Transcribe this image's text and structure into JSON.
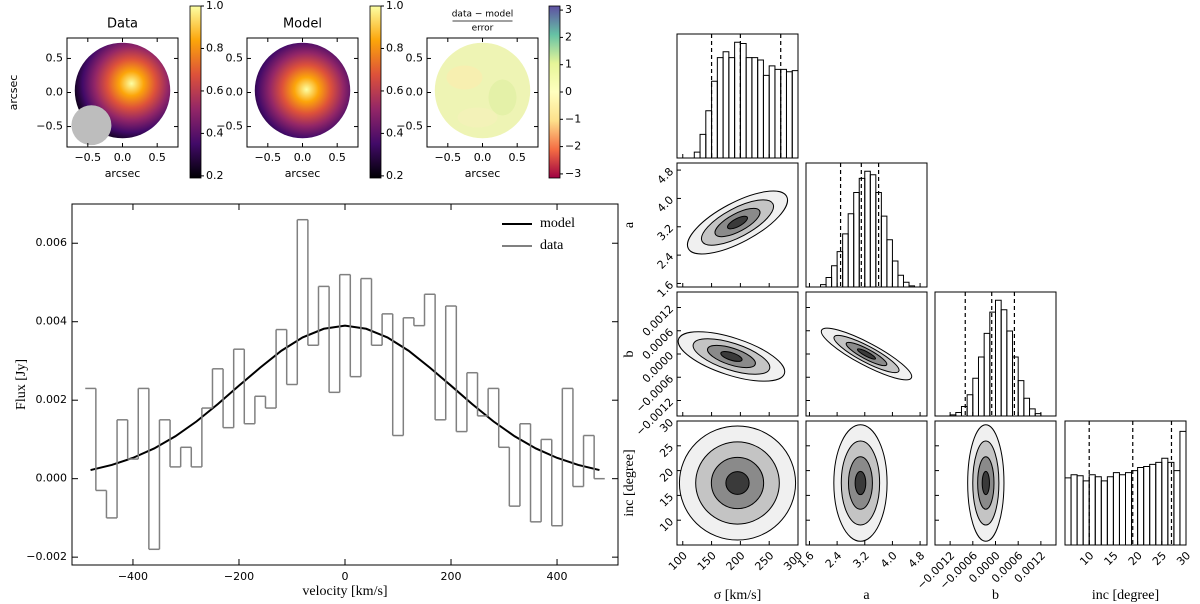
{
  "chart_data": [
    {
      "type": "image",
      "title": "Data",
      "xlabel": "arcsec",
      "ylabel": "arcsec",
      "colormap": "inferno",
      "xlim": [
        -0.8,
        0.8
      ],
      "ylim": [
        -0.8,
        0.8
      ],
      "xticks": [
        {
          "value": -0.5,
          "label": "−0.5"
        },
        {
          "value": 0,
          "label": "0.0"
        },
        {
          "value": 0.5,
          "label": "0.5"
        }
      ],
      "yticks": [
        {
          "value": -0.5,
          "label": "−0.5"
        },
        {
          "value": 0,
          "label": "0.0"
        },
        {
          "value": 0.5,
          "label": "0.5"
        }
      ],
      "clim": [
        0.19,
        1.0
      ],
      "cticks": [
        0.2,
        0.4,
        0.6,
        0.8,
        {
          "value": 1,
          "label": "1.0"
        }
      ]
    },
    {
      "type": "image",
      "title": "Model",
      "xlabel": "arcsec",
      "colormap": "inferno",
      "xlim": [
        -0.8,
        0.8
      ],
      "ylim": [
        -0.8,
        0.8
      ],
      "xticks": [
        {
          "value": -0.5,
          "label": "−0.5"
        },
        {
          "value": 0,
          "label": "0.0"
        },
        {
          "value": 0.5,
          "label": "0.5"
        }
      ],
      "yticks": [
        {
          "value": -0.5,
          "label": "−0.5"
        },
        {
          "value": 0,
          "label": "0.0"
        },
        {
          "value": 0.5,
          "label": "0.5"
        }
      ],
      "clim": [
        0.19,
        1.0
      ],
      "cticks": [
        0.2,
        0.4,
        0.6,
        0.8,
        {
          "value": 1,
          "label": "1.0"
        }
      ]
    },
    {
      "type": "image",
      "title": {
        "numerator": "data − model",
        "denominator": "error"
      },
      "xlabel": "arcsec",
      "colormap": "spectral",
      "xlim": [
        -0.8,
        0.8
      ],
      "ylim": [
        -0.8,
        0.8
      ],
      "xticks": [
        {
          "value": -0.5,
          "label": "−0.5"
        },
        {
          "value": 0,
          "label": "0.0"
        },
        {
          "value": 0.5,
          "label": "0.5"
        }
      ],
      "yticks": [
        {
          "value": -0.5,
          "label": "−0.5"
        },
        {
          "value": 0,
          "label": "0.0"
        },
        {
          "value": 0.5,
          "label": "0.5"
        }
      ],
      "clim": [
        -3.15,
        3.15
      ],
      "cticks": [
        {
          "value": -3,
          "label": "−3"
        },
        {
          "value": -2,
          "label": "−2"
        },
        {
          "value": -1,
          "label": "−1"
        },
        0,
        1,
        2,
        3
      ]
    },
    {
      "type": "line",
      "xlabel": "velocity [km/s]",
      "ylabel": "Flux [Jy]",
      "legend": "upper right",
      "xlim": [
        -515,
        515
      ],
      "ylim": [
        -0.0022,
        0.007
      ],
      "xticks": [
        {
          "value": -400,
          "label": "−400"
        },
        {
          "value": -200,
          "label": "−200"
        },
        0,
        200,
        400
      ],
      "yticks": [
        {
          "value": -0.002,
          "label": "−0.002"
        },
        {
          "value": 0,
          "label": "0.000"
        },
        0.002,
        0.004,
        0.006
      ],
      "series": [
        {
          "name": "model",
          "color": "#000000",
          "style": "line",
          "x": [
            -480,
            -440,
            -400,
            -360,
            -320,
            -280,
            -240,
            -200,
            -160,
            -120,
            -80,
            -40,
            0,
            40,
            80,
            120,
            160,
            200,
            240,
            280,
            320,
            360,
            400,
            440,
            480
          ],
          "values": [
            0.00022,
            0.00035,
            0.00053,
            0.00077,
            0.00108,
            0.00146,
            0.0019,
            0.00237,
            0.00283,
            0.00326,
            0.0036,
            0.00382,
            0.0039,
            0.00382,
            0.0036,
            0.00326,
            0.00283,
            0.00237,
            0.0019,
            0.00146,
            0.00108,
            0.00077,
            0.00053,
            0.00035,
            0.00022
          ]
        },
        {
          "name": "data",
          "color": "#808080",
          "style": "step",
          "x": [
            -480,
            -460,
            -440,
            -420,
            -400,
            -380,
            -360,
            -340,
            -320,
            -300,
            -280,
            -260,
            -240,
            -220,
            -200,
            -180,
            -160,
            -140,
            -120,
            -100,
            -80,
            -60,
            -40,
            -20,
            0,
            20,
            40,
            60,
            80,
            100,
            120,
            140,
            160,
            180,
            200,
            220,
            240,
            260,
            280,
            300,
            320,
            340,
            360,
            380,
            400,
            420,
            440,
            460,
            480
          ],
          "values": [
            0.0023,
            -0.0003,
            -0.001,
            0.0015,
            0.0005,
            0.0023,
            -0.0018,
            0.0015,
            0.0003,
            0.0008,
            0.0003,
            0.0018,
            0.0028,
            0.0013,
            0.0033,
            0.0014,
            0.0021,
            0.0018,
            0.0038,
            0.0024,
            0.0066,
            0.0034,
            0.0049,
            0.0022,
            0.0052,
            0.0026,
            0.0051,
            0.0034,
            0.0042,
            0.0011,
            0.0041,
            0.0039,
            0.0047,
            0.0015,
            0.0044,
            0.0012,
            0.0027,
            0.0016,
            0.0023,
            0.0008,
            -0.0007,
            0.0014,
            -0.0011,
            0.001,
            -0.0012,
            0.0023,
            -0.0002,
            0.0011,
            0
          ]
        }
      ]
    },
    {
      "type": "corner",
      "color": "#000000",
      "params": [
        {
          "label": "σ [km/s]",
          "lim": [
            90,
            300
          ],
          "ticks": [
            100,
            150,
            200,
            250,
            300
          ],
          "quantiles": [
            150,
            200,
            270
          ],
          "bins": [
            100,
            110,
            120,
            130,
            140,
            150,
            160,
            170,
            180,
            190,
            200,
            210,
            220,
            230,
            240,
            250,
            260,
            270,
            280,
            290,
            300
          ],
          "counts": [
            0,
            0,
            5,
            20,
            40,
            65,
            85,
            90,
            85,
            98,
            97,
            85,
            85,
            83,
            70,
            78,
            75,
            75,
            73,
            74
          ],
          "hist_ylim": [
            0,
            105
          ]
        },
        {
          "label": "a",
          "lim": [
            1.5,
            5.0
          ],
          "ticks": [
            1.6,
            2.4,
            3.2,
            {
              "value": 4,
              "label": "4.0"
            },
            4.8
          ],
          "quantiles": [
            2.5,
            3.1,
            3.6
          ],
          "bins": [
            1.6,
            1.76,
            1.92,
            2.08,
            2.24,
            2.4,
            2.56,
            2.72,
            2.88,
            3.04,
            3.2,
            3.36,
            3.52,
            3.68,
            3.84,
            4.0,
            4.16,
            4.32,
            4.48,
            4.64,
            4.8
          ],
          "counts": [
            0,
            0,
            2,
            8,
            18,
            30,
            45,
            62,
            80,
            92,
            98,
            95,
            80,
            60,
            40,
            22,
            10,
            4,
            1,
            0
          ],
          "hist_ylim": [
            0,
            105
          ]
        },
        {
          "label": "b",
          "lim": [
            -0.0016,
            0.0016
          ],
          "ticks": [
            {
              "value": -0.0012,
              "label": "−0.0012"
            },
            {
              "value": -0.0006,
              "label": "−0.0006"
            },
            {
              "value": 0,
              "label": "0.0000"
            },
            0.0006,
            0.0012
          ],
          "quantiles": [
            -0.0008,
            -0.0001,
            0.0005
          ],
          "bins": [
            -0.0015,
            -0.00135,
            -0.0012,
            -0.00105,
            -0.0009,
            -0.00075,
            -0.0006,
            -0.00045,
            -0.0003,
            -0.00015,
            0,
            0.00015,
            0.0003,
            0.00045,
            0.0006,
            0.00075,
            0.0009,
            0.00105,
            0.0012,
            0.00135,
            0.0015
          ],
          "counts": [
            0,
            0,
            1,
            3,
            8,
            18,
            32,
            50,
            70,
            88,
            98,
            90,
            72,
            50,
            30,
            15,
            6,
            2,
            0,
            0
          ],
          "hist_ylim": [
            0,
            105
          ]
        },
        {
          "label": "inc [degree]",
          "lim": [
            5,
            30
          ],
          "ticks": [
            10,
            15,
            20,
            25,
            30
          ],
          "quantiles": [
            10,
            19,
            27
          ],
          "bins": [
            5,
            6.25,
            7.5,
            8.75,
            10,
            11.25,
            12.5,
            13.75,
            15,
            16.25,
            17.5,
            18.75,
            20,
            21.25,
            22.5,
            23.75,
            25,
            26.25,
            27.5,
            28.75,
            30
          ],
          "counts": [
            65,
            68,
            67,
            62,
            68,
            66,
            62,
            66,
            70,
            68,
            70,
            72,
            75,
            76,
            78,
            80,
            84,
            80,
            72,
            110
          ],
          "hist_ylim": [
            0,
            120
          ]
        }
      ]
    }
  ]
}
